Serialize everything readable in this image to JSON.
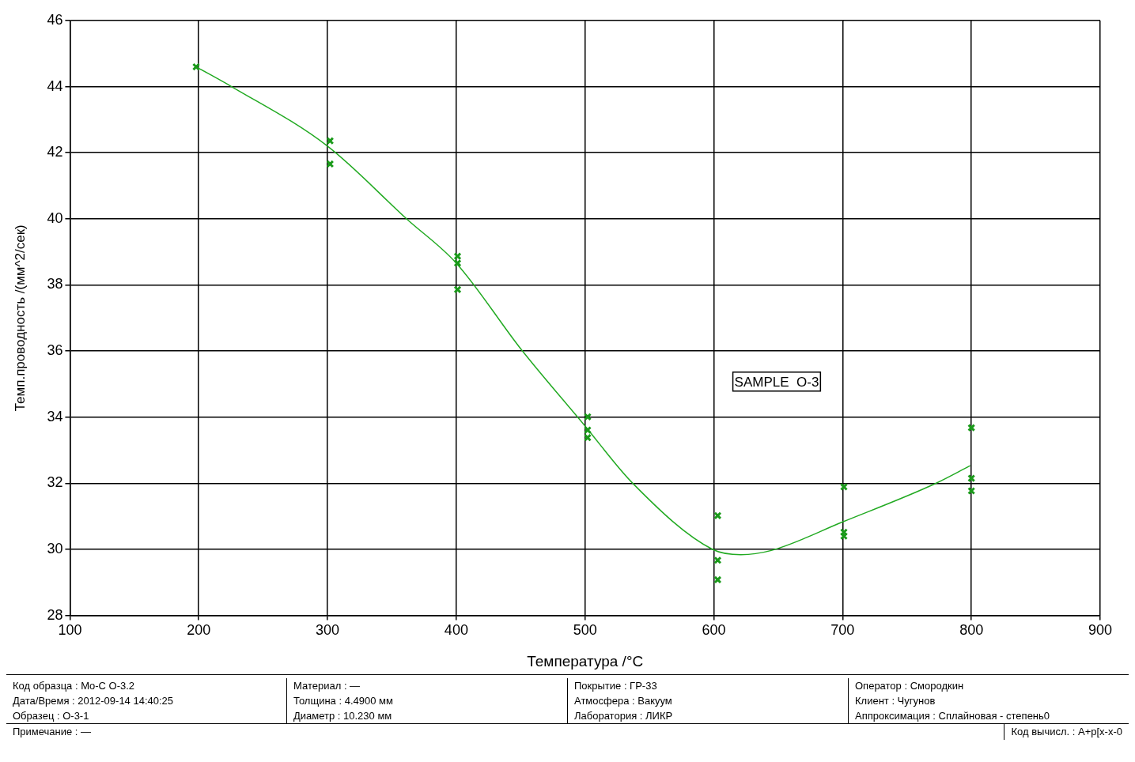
{
  "chart_data": {
    "type": "scatter",
    "xlabel": "Температура /°C",
    "ylabel": "Темп.проводность /(мм^2/сек)",
    "xlim": [
      100,
      900
    ],
    "xticks": [
      100,
      200,
      300,
      400,
      500,
      600,
      700,
      800,
      900
    ],
    "ylim": [
      28,
      46
    ],
    "yticks": [
      28,
      30,
      32,
      34,
      36,
      38,
      40,
      42,
      44,
      46
    ],
    "grid": true,
    "legend": false,
    "series": [
      {
        "marker": "cross",
        "color": "#1a9a1a",
        "x": [
          198,
          302,
          302,
          401,
          401,
          401,
          502,
          502,
          502,
          603,
          603,
          603,
          701,
          701,
          701,
          800,
          800,
          800
        ],
        "values": [
          44.6,
          42.36,
          41.66,
          38.87,
          38.66,
          37.86,
          34.01,
          33.61,
          33.38,
          31.02,
          29.67,
          29.08,
          31.89,
          30.52,
          30.4,
          33.68,
          32.15,
          31.77
        ]
      },
      {
        "type": "line",
        "color": "#22aa22",
        "line_style": "solid",
        "x": [
          198,
          226,
          300,
          362,
          400,
          451,
          499,
          537,
          599,
          621,
          644,
          700,
          772,
          799
        ],
        "values": [
          44.6,
          43.99,
          42.2,
          39.98,
          38.66,
          36.02,
          33.78,
          32.0,
          30.0,
          29.84,
          29.96,
          30.83,
          31.99,
          32.53
        ]
      }
    ],
    "annotations": [
      "SAMPLE  O-3",
      "Код образца :  Mo-C O-3.2",
      "Дата/Время :  2012-09-14 14:40:25",
      "Образец :  O-3-1",
      "Материал :  —",
      "Толщина :  4.4900 мм",
      "Диаметр :  10.230 мм",
      "Покрытие :  ГР-33",
      "Атмосфера :  Вакуум",
      "Лаборатория :  ЛИКР",
      "Оператор :  Смородкин",
      "Клиент :  Чугунов",
      "Аппроксимация :  Сплайновая - степень0",
      "Примечание :  —",
      "Код вычисл. :  A+p[x-x-0"
    ]
  }
}
